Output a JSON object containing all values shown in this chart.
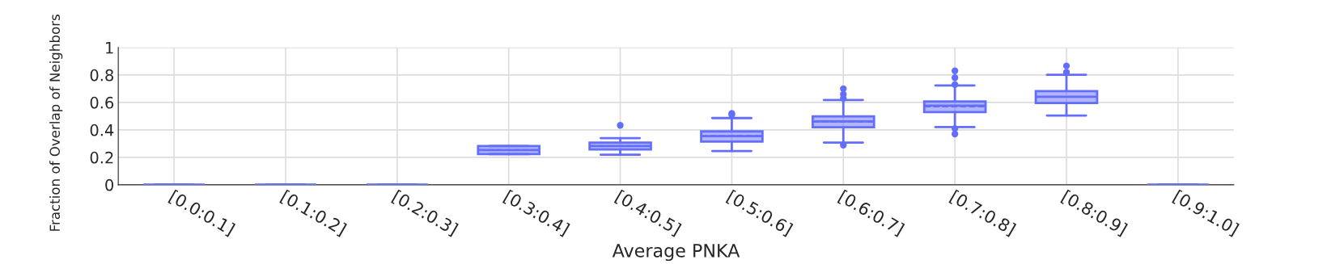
{
  "chart_data": {
    "type": "box",
    "xlabel": "Average PNKA",
    "ylabel": "Fraction of Overlap of Neighbors",
    "categories": [
      "[0.0:0.1]",
      "[0.1:0.2]",
      "[0.2:0.3]",
      "[0.3:0.4]",
      "[0.4:0.5]",
      "[0.5:0.6]",
      "[0.6:0.7]",
      "[0.7:0.8]",
      "[0.8:0.9]",
      "[0.9:1.0]"
    ],
    "color": "#636efa",
    "boxes": [
      {
        "low": 0,
        "q1": 0,
        "median": 0,
        "q3": 0,
        "high": 0
      },
      {
        "low": 0,
        "q1": 0,
        "median": 0,
        "q3": 0,
        "high": 0
      },
      {
        "low": 0,
        "q1": 0,
        "median": 0,
        "q3": 0,
        "high": 0
      },
      {
        "low": 0.223,
        "q1": 0.223,
        "median": 0.253,
        "q3": 0.283,
        "high": 0.283,
        "mean": 0.253
      },
      {
        "low": 0.219,
        "q1": 0.257,
        "median": 0.283,
        "q3": 0.308,
        "high": 0.34,
        "mean": 0.283,
        "outliers": [
          0.433
        ]
      },
      {
        "low": 0.246,
        "q1": 0.315,
        "median": 0.355,
        "q3": 0.389,
        "high": 0.486,
        "mean": 0.357,
        "outliers": [
          0.51,
          0.52
        ]
      },
      {
        "low": 0.308,
        "q1": 0.419,
        "median": 0.462,
        "q3": 0.498,
        "high": 0.618,
        "mean": 0.46,
        "outliers": [
          0.289,
          0.63,
          0.66,
          0.7
        ]
      },
      {
        "low": 0.42,
        "q1": 0.53,
        "median": 0.577,
        "q3": 0.607,
        "high": 0.723,
        "mean": 0.57,
        "outliers": [
          0.37,
          0.41,
          0.73,
          0.78,
          0.83
        ]
      },
      {
        "low": 0.505,
        "q1": 0.595,
        "median": 0.641,
        "q3": 0.682,
        "high": 0.802,
        "mean": 0.64,
        "outliers": [
          0.82,
          0.866
        ]
      },
      {
        "low": 0,
        "q1": 0,
        "median": 0,
        "q3": 0,
        "high": 0
      }
    ],
    "ylim": [
      0,
      1
    ],
    "yticks": [
      0,
      0.2,
      0.4,
      0.6,
      0.8,
      1
    ],
    "grid": true
  }
}
